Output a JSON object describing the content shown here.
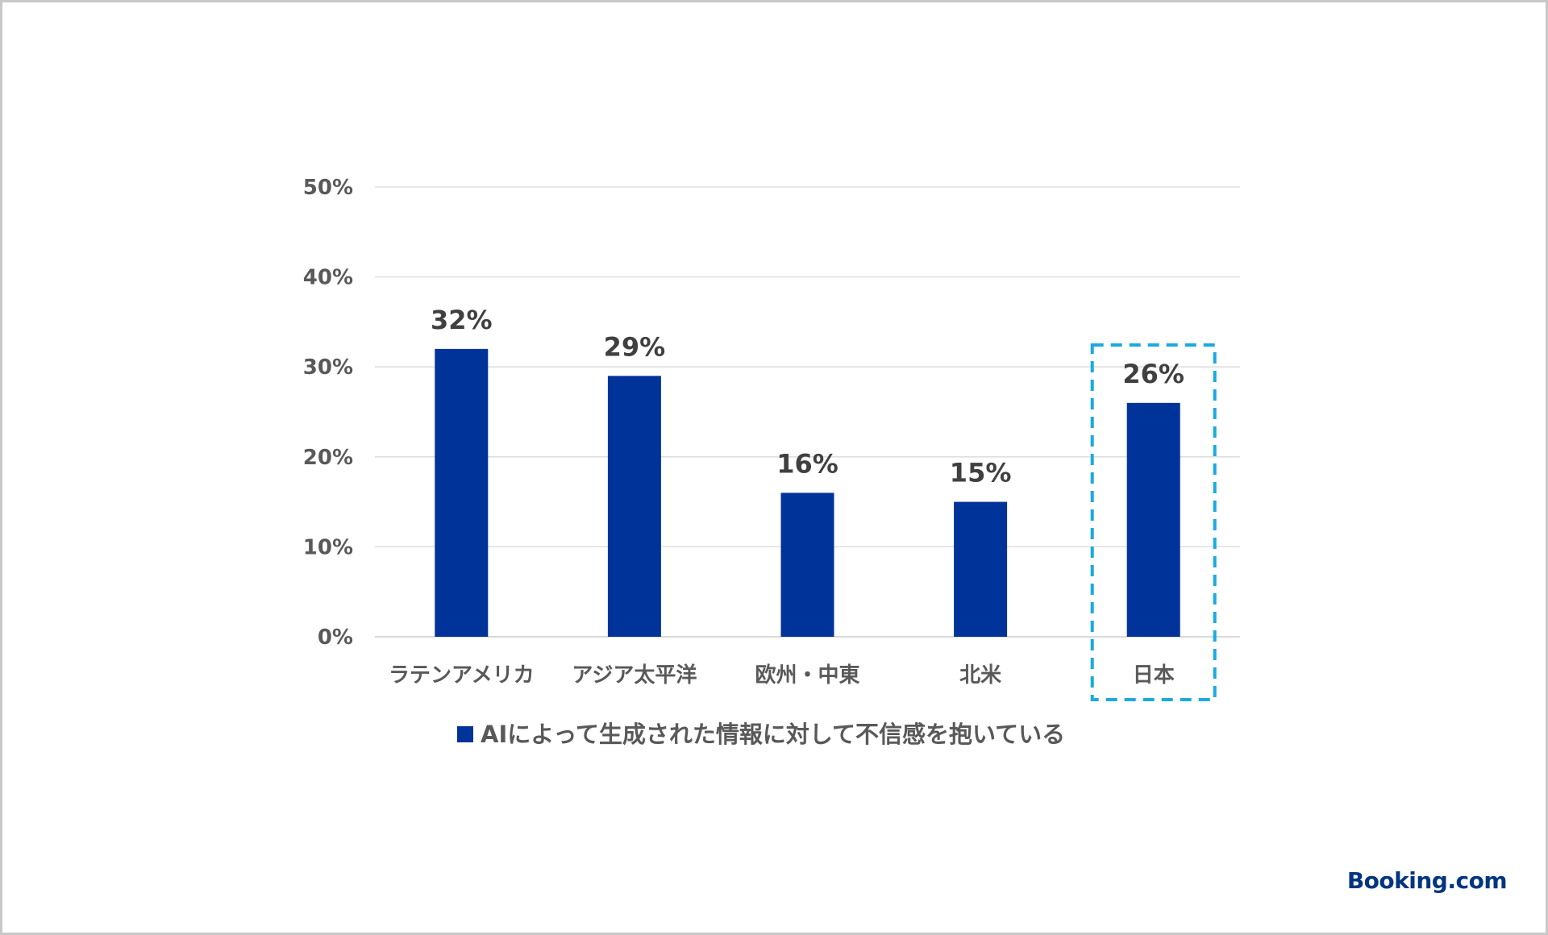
{
  "chart_data": {
    "type": "bar",
    "categories": [
      "ラテンアメリカ",
      "アジア太平洋",
      "欧州・中東",
      "北米",
      "日本"
    ],
    "series": [
      {
        "name": "AIによって生成された情報に対して不信感を抱いている",
        "values": [
          32,
          29,
          16,
          15,
          26
        ]
      }
    ],
    "data_labels": [
      "32%",
      "29%",
      "16%",
      "15%",
      "26%"
    ],
    "y_ticks": [
      "0%",
      "10%",
      "20%",
      "30%",
      "40%",
      "50%"
    ],
    "ylim": [
      0,
      50
    ],
    "grid": true,
    "legend_position": "bottom",
    "highlighted_category": "日本"
  },
  "colors": {
    "bar": "#003399",
    "highlight_box": "#1BA9E1",
    "grid": "#d9d9d9",
    "tick_text": "#595959",
    "label_text": "#404040"
  },
  "brand": {
    "logo_text": "Booking.com"
  }
}
